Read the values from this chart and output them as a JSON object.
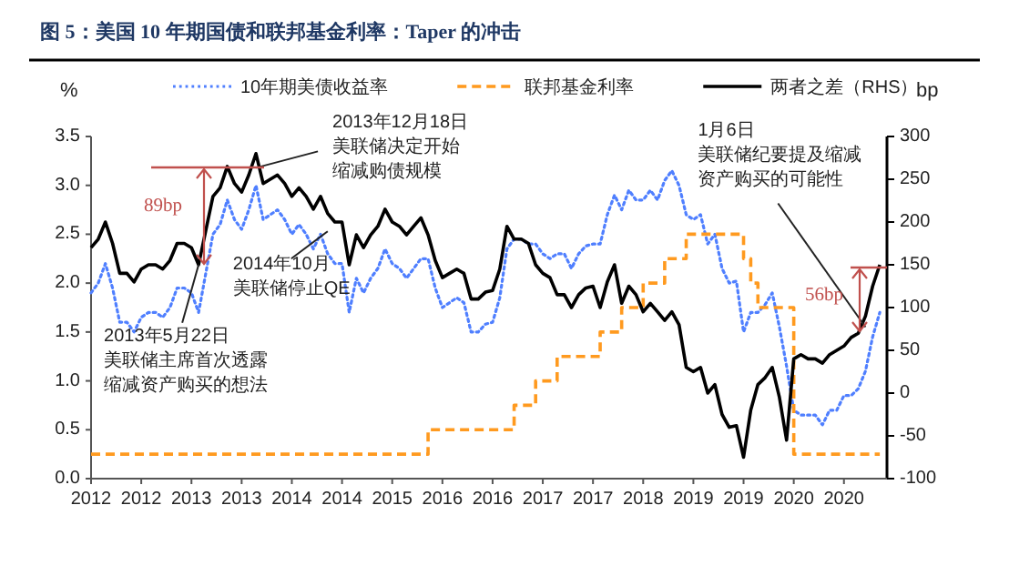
{
  "chart_data": {
    "type": "line",
    "title": "图 5：美国 10 年期国债和联邦基金利率：Taper 的冲击",
    "ylabel": "%",
    "y2label": "bp",
    "x": [
      "2012-01",
      "2012-02",
      "2012-03",
      "2012-04",
      "2012-05",
      "2012-06",
      "2012-07",
      "2012-08",
      "2012-09",
      "2012-10",
      "2012-11",
      "2012-12",
      "2013-01",
      "2013-02",
      "2013-03",
      "2013-04",
      "2013-05",
      "2013-06",
      "2013-07",
      "2013-08",
      "2013-09",
      "2013-10",
      "2013-11",
      "2013-12",
      "2014-01",
      "2014-02",
      "2014-03",
      "2014-04",
      "2014-05",
      "2014-06",
      "2014-07",
      "2014-08",
      "2014-09",
      "2014-10",
      "2014-11",
      "2014-12",
      "2015-01",
      "2015-02",
      "2015-03",
      "2015-04",
      "2015-05",
      "2015-06",
      "2015-07",
      "2015-08",
      "2015-09",
      "2015-10",
      "2015-11",
      "2015-12",
      "2016-01",
      "2016-02",
      "2016-03",
      "2016-04",
      "2016-05",
      "2016-06",
      "2016-07",
      "2016-08",
      "2016-09",
      "2016-10",
      "2016-11",
      "2016-12",
      "2017-01",
      "2017-02",
      "2017-03",
      "2017-04",
      "2017-05",
      "2017-06",
      "2017-07",
      "2017-08",
      "2017-09",
      "2017-10",
      "2017-11",
      "2017-12",
      "2018-01",
      "2018-02",
      "2018-03",
      "2018-04",
      "2018-05",
      "2018-06",
      "2018-07",
      "2018-08",
      "2018-09",
      "2018-10",
      "2018-11",
      "2018-12",
      "2019-01",
      "2019-02",
      "2019-03",
      "2019-04",
      "2019-05",
      "2019-06",
      "2019-07",
      "2019-08",
      "2019-09",
      "2019-10",
      "2019-11",
      "2019-12",
      "2020-01",
      "2020-02",
      "2020-03",
      "2020-04",
      "2020-05",
      "2020-06",
      "2020-07",
      "2020-08",
      "2020-09",
      "2020-10",
      "2020-11",
      "2020-12",
      "2021-01",
      "2021-02",
      "2021-03"
    ],
    "series": [
      {
        "name": "10年期美债收益率",
        "color": "#4f7fff",
        "line_style": "dotted",
        "values": [
          1.9,
          2.0,
          2.2,
          1.95,
          1.6,
          1.6,
          1.5,
          1.65,
          1.7,
          1.7,
          1.65,
          1.75,
          1.95,
          1.95,
          1.9,
          1.7,
          2.1,
          2.5,
          2.6,
          2.85,
          2.65,
          2.55,
          2.75,
          3.0,
          2.65,
          2.7,
          2.75,
          2.65,
          2.5,
          2.6,
          2.5,
          2.35,
          2.5,
          2.3,
          2.2,
          2.2,
          1.7,
          2.05,
          1.9,
          2.05,
          2.15,
          2.35,
          2.2,
          2.15,
          2.05,
          2.15,
          2.25,
          2.25,
          1.95,
          1.75,
          1.8,
          1.85,
          1.8,
          1.5,
          1.5,
          1.58,
          1.6,
          1.85,
          2.35,
          2.45,
          2.45,
          2.4,
          2.4,
          2.3,
          2.25,
          2.3,
          2.3,
          2.15,
          2.3,
          2.38,
          2.4,
          2.4,
          2.7,
          2.9,
          2.75,
          2.95,
          2.85,
          2.85,
          2.95,
          2.85,
          3.05,
          3.15,
          3.0,
          2.7,
          2.65,
          2.7,
          2.4,
          2.5,
          2.15,
          2.0,
          2.02,
          1.5,
          1.7,
          1.7,
          1.78,
          1.9,
          1.55,
          1.15,
          0.7,
          0.65,
          0.65,
          0.65,
          0.55,
          0.7,
          0.7,
          0.85,
          0.85,
          0.92,
          1.1,
          1.45,
          1.7
        ]
      },
      {
        "name": "联邦基金利率",
        "color": "#ff9a1f",
        "type": "step",
        "line_style": "dashed",
        "x": [
          "2012-01",
          "2015-12",
          "2016-12",
          "2017-03",
          "2017-06",
          "2017-12",
          "2018-03",
          "2018-06",
          "2018-09",
          "2018-12",
          "2019-08",
          "2019-09",
          "2019-10",
          "2020-03",
          "2021-03"
        ],
        "values": [
          0.25,
          0.5,
          0.75,
          1.0,
          1.25,
          1.5,
          1.75,
          2.0,
          2.25,
          2.5,
          2.25,
          2.0,
          1.75,
          0.25,
          0.25
        ]
      },
      {
        "name": "两者之差（RHS）",
        "color": "#000000",
        "axis": "y2",
        "line_style": "solid",
        "values": [
          170,
          180,
          200,
          175,
          140,
          140,
          130,
          145,
          150,
          150,
          145,
          155,
          175,
          175,
          170,
          150,
          190,
          230,
          240,
          265,
          245,
          235,
          255,
          280,
          245,
          250,
          255,
          245,
          230,
          240,
          230,
          215,
          230,
          210,
          200,
          200,
          150,
          185,
          170,
          185,
          195,
          215,
          200,
          195,
          185,
          195,
          205,
          185,
          155,
          135,
          140,
          145,
          140,
          110,
          110,
          118,
          120,
          145,
          195,
          180,
          180,
          175,
          150,
          140,
          135,
          115,
          115,
          100,
          115,
          123,
          125,
          100,
          130,
          150,
          105,
          125,
          115,
          95,
          105,
          95,
          85,
          95,
          80,
          30,
          25,
          30,
          0,
          10,
          -25,
          -40,
          -38,
          -75,
          -20,
          10,
          18,
          30,
          -5,
          -55,
          40,
          45,
          40,
          40,
          35,
          45,
          50,
          55,
          65,
          70,
          90,
          125,
          150
        ]
      }
    ],
    "xlim": [
      "2012-01",
      "2021-04"
    ],
    "xticks": [
      {
        "value": "2012-01",
        "label": "2012"
      },
      {
        "value": "2012-08",
        "label": "2012"
      },
      {
        "value": "2013-03",
        "label": "2013"
      },
      {
        "value": "2013-10",
        "label": "2013"
      },
      {
        "value": "2014-05",
        "label": "2014"
      },
      {
        "value": "2014-12",
        "label": "2014"
      },
      {
        "value": "2015-07",
        "label": "2015"
      },
      {
        "value": "2016-02",
        "label": "2016"
      },
      {
        "value": "2016-09",
        "label": "2016"
      },
      {
        "value": "2017-04",
        "label": "2017"
      },
      {
        "value": "2017-11",
        "label": "2017"
      },
      {
        "value": "2018-06",
        "label": "2018"
      },
      {
        "value": "2019-01",
        "label": "2019"
      },
      {
        "value": "2019-08",
        "label": "2019"
      },
      {
        "value": "2020-03",
        "label": "2020"
      },
      {
        "value": "2020-10",
        "label": "2020"
      }
    ],
    "ylim": [
      0,
      3.5
    ],
    "yticks": [
      {
        "value": 0,
        "label": "0.0"
      },
      {
        "value": 0.5,
        "label": "0.5"
      },
      {
        "value": 1,
        "label": "1.0"
      },
      {
        "value": 1.5,
        "label": "1.5"
      },
      {
        "value": 2,
        "label": "2.0"
      },
      {
        "value": 2.5,
        "label": "2.5"
      },
      {
        "value": 3,
        "label": "3.0"
      },
      {
        "value": 3.5,
        "label": "3.5"
      }
    ],
    "y2lim": [
      -100,
      300
    ],
    "y2ticks": [
      -100,
      -50,
      0,
      50,
      100,
      150,
      200,
      250,
      300
    ],
    "legend": "top",
    "annotations": [
      {
        "text": "2013年12月18日美联储决定开始缩减购债规模",
        "x": "2013-12",
        "y": 3.18
      },
      {
        "text": "2014年10月美联储停止QE",
        "x": "2014-10",
        "y": 2.53
      },
      {
        "text": "2013年5月22日美联储主席首次透露缩减资产购买的想法",
        "x": "2013-04",
        "y": 2.19
      },
      {
        "text": "1月6日美联储纪要提及缩减资产购买的可能性",
        "x": "2021-01",
        "y": 1.55
      },
      "89bp",
      "56bp"
    ]
  }
}
